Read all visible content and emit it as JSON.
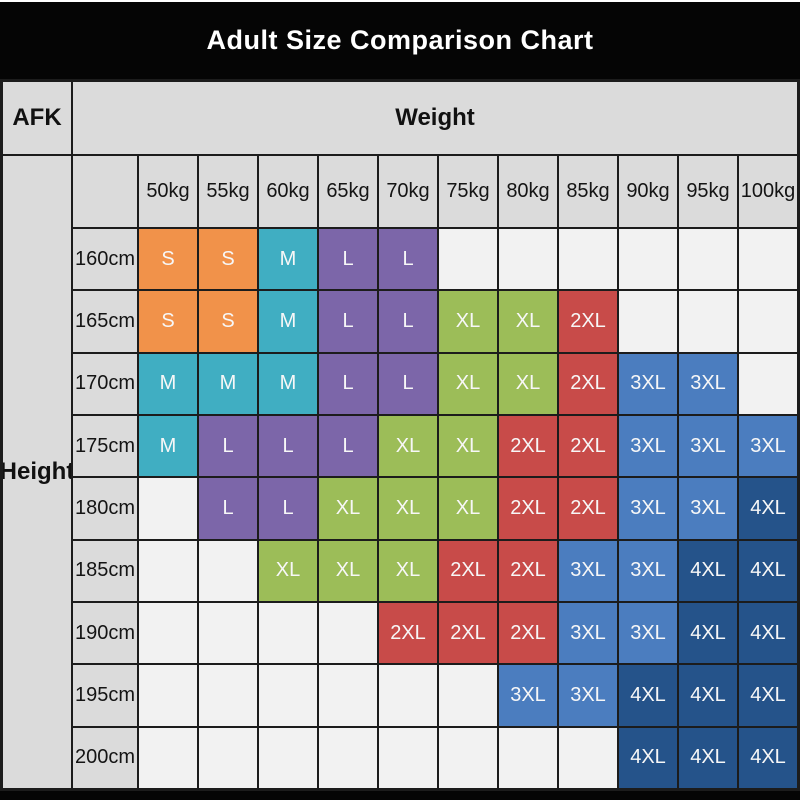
{
  "title": "Adult Size Comparison Chart",
  "corner_label": "AFK",
  "axis": {
    "weight_label": "Weight",
    "height_label": "Height"
  },
  "chart_data": {
    "type": "table",
    "columns": [
      "50kg",
      "55kg",
      "60kg",
      "65kg",
      "70kg",
      "75kg",
      "80kg",
      "85kg",
      "90kg",
      "95kg",
      "100kg"
    ],
    "rows": [
      "160cm",
      "165cm",
      "170cm",
      "175cm",
      "180cm",
      "185cm",
      "190cm",
      "195cm",
      "200cm"
    ],
    "cells": [
      [
        "S",
        "S",
        "M",
        "L",
        "L",
        "",
        "",
        "",
        "",
        "",
        ""
      ],
      [
        "S",
        "S",
        "M",
        "L",
        "L",
        "XL",
        "XL",
        "2XL",
        "",
        "",
        ""
      ],
      [
        "M",
        "M",
        "M",
        "L",
        "L",
        "XL",
        "XL",
        "2XL",
        "3XL",
        "3XL",
        ""
      ],
      [
        "M",
        "L",
        "L",
        "L",
        "XL",
        "XL",
        "2XL",
        "2XL",
        "3XL",
        "3XL",
        "3XL"
      ],
      [
        "",
        "L",
        "L",
        "XL",
        "XL",
        "XL",
        "2XL",
        "2XL",
        "3XL",
        "3XL",
        "4XL"
      ],
      [
        "",
        "",
        "XL",
        "XL",
        "XL",
        "2XL",
        "2XL",
        "3XL",
        "3XL",
        "4XL",
        "4XL"
      ],
      [
        "",
        "",
        "",
        "",
        "2XL",
        "2XL",
        "2XL",
        "3XL",
        "3XL",
        "4XL",
        "4XL"
      ],
      [
        "",
        "",
        "",
        "",
        "",
        "",
        "3XL",
        "3XL",
        "4XL",
        "4XL",
        "4XL"
      ],
      [
        "",
        "",
        "",
        "",
        "",
        "",
        "",
        "",
        "4XL",
        "4XL",
        "4XL"
      ]
    ],
    "size_colors": {
      "S": "#F1924A",
      "M": "#40AEC2",
      "L": "#7C66A9",
      "XL": "#9CBD58",
      "2XL": "#C84B49",
      "3XL": "#4B7DBF",
      "4XL": "#25538A"
    },
    "empty_cell_color": "#F2F2F2",
    "header_bg": "#DBDBDB",
    "bar_color": "#050505",
    "border_color": "#1C1C1C",
    "cell_text_color": "#F7F7F7",
    "legend_position": "none",
    "grid": true
  }
}
